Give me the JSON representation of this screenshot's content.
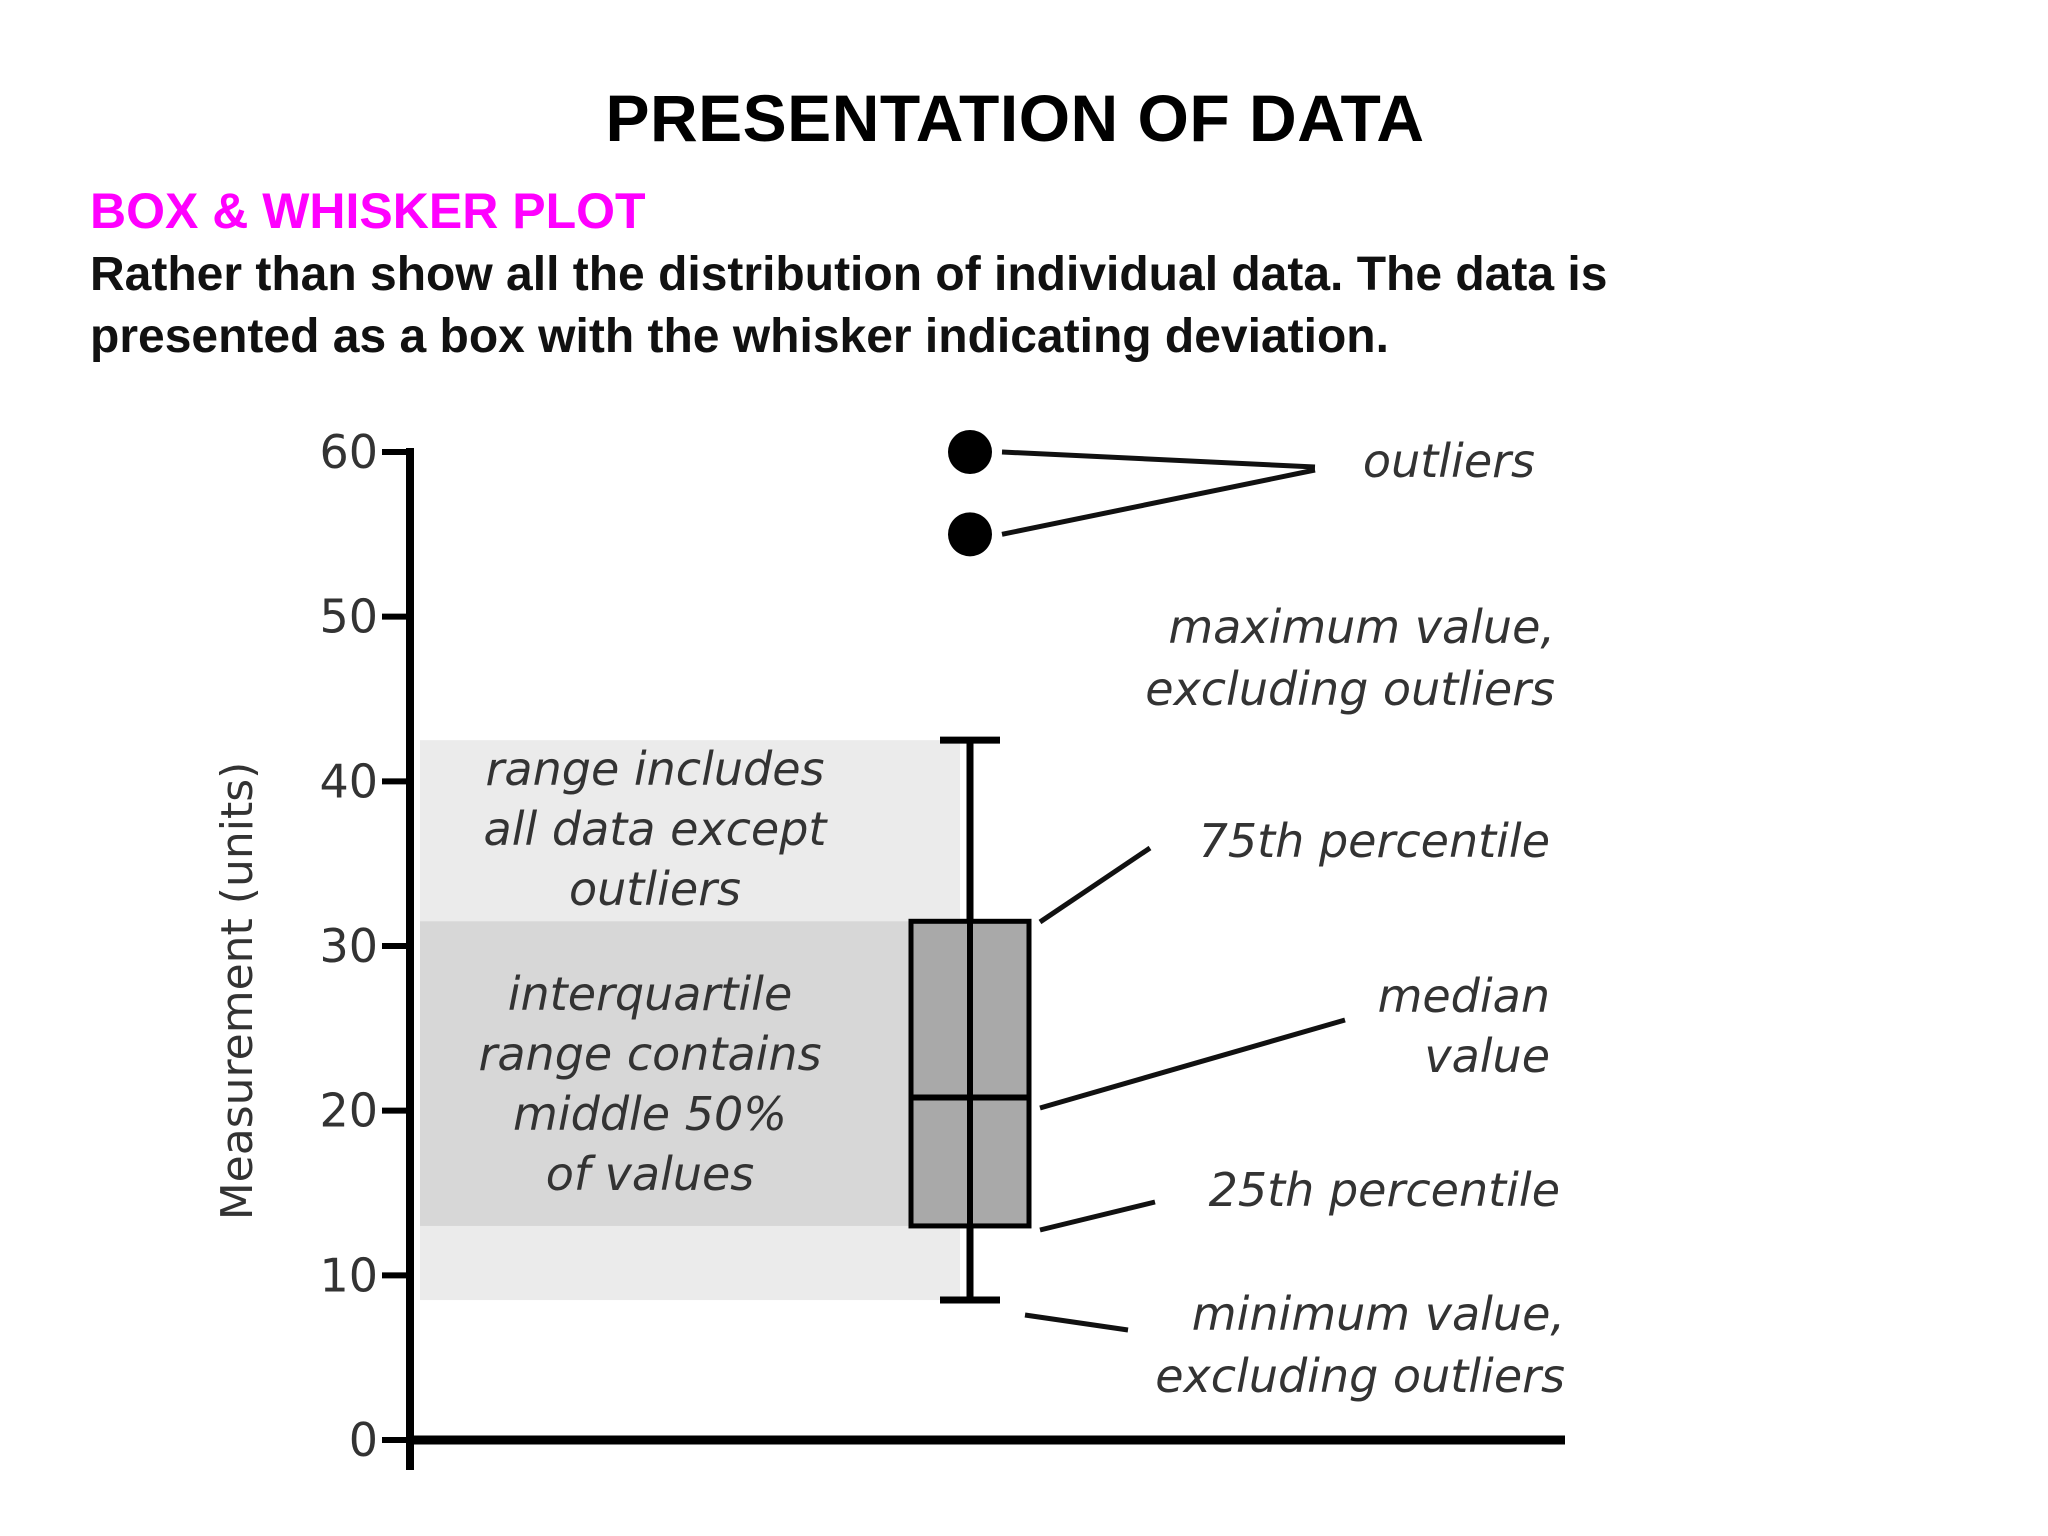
{
  "page": {
    "title": "PRESENTATION OF DATA",
    "heading": "BOX & WHISKER PLOT",
    "description_lines": [
      "Rather than show all the distribution of individual data. The data is",
      "presented as a box with the whisker indicating deviation."
    ],
    "heading_color": "#ff00ff"
  },
  "chart_data": {
    "type": "box",
    "ylabel": "Measurement (units)",
    "ylim": [
      0,
      60
    ],
    "yticks": [
      0,
      10,
      20,
      30,
      40,
      50,
      60
    ],
    "box": {
      "min": 8.5,
      "q1": 13,
      "median": 20.8,
      "q3": 31.5,
      "max": 42.5,
      "outliers": [
        60,
        55
      ]
    },
    "annotations": {
      "outliers": [
        "outliers"
      ],
      "maximum": [
        "maximum value,",
        "excluding outliers"
      ],
      "q3": [
        "75th percentile"
      ],
      "median": [
        "median",
        "value"
      ],
      "q1": [
        "25th percentile"
      ],
      "minimum": [
        "minimum value,",
        "excluding outliers"
      ],
      "range": [
        "range includes",
        "all data except",
        "outliers"
      ],
      "iqr": [
        "interquartile",
        "range contains",
        "middle 50%",
        "of values"
      ]
    },
    "colors": {
      "range_band": "#ebebeb",
      "iqr_band": "#d7d7d7",
      "box_fill": "#a9a9a9",
      "ink": "#000000"
    }
  }
}
